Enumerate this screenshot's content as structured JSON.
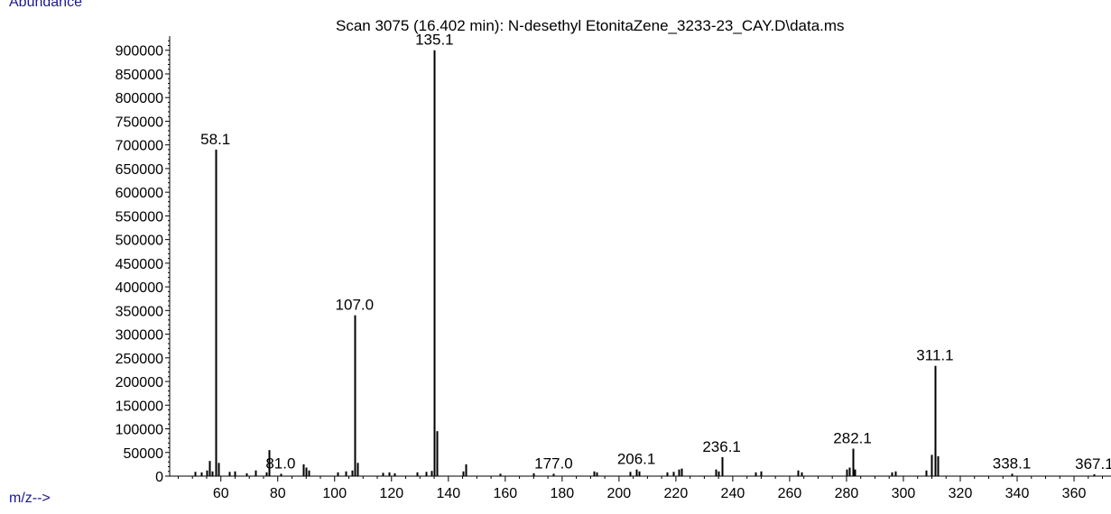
{
  "chart_data": {
    "type": "bar",
    "title": "Scan 3075 (16.402 min): N-desethyl EtonitaZene_3233-23_CAY.D\\data.ms",
    "ylabel": "Abundance",
    "xlabel": "m/z-->",
    "xlim": [
      42,
      373
    ],
    "ylim": [
      0,
      930000
    ],
    "x_ticks": [
      60,
      80,
      100,
      120,
      140,
      160,
      180,
      200,
      220,
      240,
      260,
      280,
      300,
      320,
      340,
      360
    ],
    "y_ticks": [
      0,
      50000,
      100000,
      150000,
      200000,
      250000,
      300000,
      350000,
      400000,
      450000,
      500000,
      550000,
      600000,
      650000,
      700000,
      750000,
      800000,
      850000,
      900000
    ],
    "peaks": [
      {
        "mz": 51,
        "abundance": 9000
      },
      {
        "mz": 53,
        "abundance": 8000
      },
      {
        "mz": 55,
        "abundance": 12000
      },
      {
        "mz": 56,
        "abundance": 32000
      },
      {
        "mz": 57,
        "abundance": 10000
      },
      {
        "mz": 58.1,
        "abundance": 690000
      },
      {
        "mz": 59,
        "abundance": 28000
      },
      {
        "mz": 63,
        "abundance": 9000
      },
      {
        "mz": 65,
        "abundance": 10000
      },
      {
        "mz": 69,
        "abundance": 6000
      },
      {
        "mz": 72,
        "abundance": 12000
      },
      {
        "mz": 76,
        "abundance": 8000
      },
      {
        "mz": 77,
        "abundance": 55000
      },
      {
        "mz": 81.0,
        "abundance": 5000
      },
      {
        "mz": 89,
        "abundance": 25000
      },
      {
        "mz": 90,
        "abundance": 18000
      },
      {
        "mz": 91,
        "abundance": 12000
      },
      {
        "mz": 101,
        "abundance": 8000
      },
      {
        "mz": 104,
        "abundance": 10000
      },
      {
        "mz": 106,
        "abundance": 12000
      },
      {
        "mz": 107.0,
        "abundance": 340000
      },
      {
        "mz": 108,
        "abundance": 28000
      },
      {
        "mz": 117,
        "abundance": 7000
      },
      {
        "mz": 119,
        "abundance": 8000
      },
      {
        "mz": 121,
        "abundance": 6000
      },
      {
        "mz": 129,
        "abundance": 8000
      },
      {
        "mz": 132,
        "abundance": 9000
      },
      {
        "mz": 134,
        "abundance": 11000
      },
      {
        "mz": 135.1,
        "abundance": 900000
      },
      {
        "mz": 136,
        "abundance": 95000
      },
      {
        "mz": 145,
        "abundance": 10000
      },
      {
        "mz": 146,
        "abundance": 25000
      },
      {
        "mz": 158,
        "abundance": 5000
      },
      {
        "mz": 170,
        "abundance": 6000
      },
      {
        "mz": 177.0,
        "abundance": 5000
      },
      {
        "mz": 191,
        "abundance": 10000
      },
      {
        "mz": 192,
        "abundance": 8000
      },
      {
        "mz": 204,
        "abundance": 9000
      },
      {
        "mz": 206.1,
        "abundance": 14000
      },
      {
        "mz": 207,
        "abundance": 10000
      },
      {
        "mz": 217,
        "abundance": 8000
      },
      {
        "mz": 219,
        "abundance": 9000
      },
      {
        "mz": 221,
        "abundance": 14000
      },
      {
        "mz": 222,
        "abundance": 16000
      },
      {
        "mz": 234,
        "abundance": 14000
      },
      {
        "mz": 235,
        "abundance": 10000
      },
      {
        "mz": 236.1,
        "abundance": 40000
      },
      {
        "mz": 248,
        "abundance": 8000
      },
      {
        "mz": 250,
        "abundance": 10000
      },
      {
        "mz": 263,
        "abundance": 12000
      },
      {
        "mz": 264,
        "abundance": 8000
      },
      {
        "mz": 280,
        "abundance": 14000
      },
      {
        "mz": 281,
        "abundance": 18000
      },
      {
        "mz": 282.1,
        "abundance": 58000
      },
      {
        "mz": 283,
        "abundance": 14000
      },
      {
        "mz": 296,
        "abundance": 8000
      },
      {
        "mz": 297,
        "abundance": 10000
      },
      {
        "mz": 308,
        "abundance": 12000
      },
      {
        "mz": 310,
        "abundance": 45000
      },
      {
        "mz": 311.1,
        "abundance": 233000
      },
      {
        "mz": 312,
        "abundance": 42000
      },
      {
        "mz": 338.1,
        "abundance": 5000
      },
      {
        "mz": 367.1,
        "abundance": 4000
      }
    ],
    "annotations": [
      "58.1",
      "81.0",
      "107.0",
      "135.1",
      "177.0",
      "206.1",
      "236.1",
      "282.1",
      "311.1",
      "338.1",
      "367.1"
    ],
    "grid": false,
    "legend": "none"
  }
}
